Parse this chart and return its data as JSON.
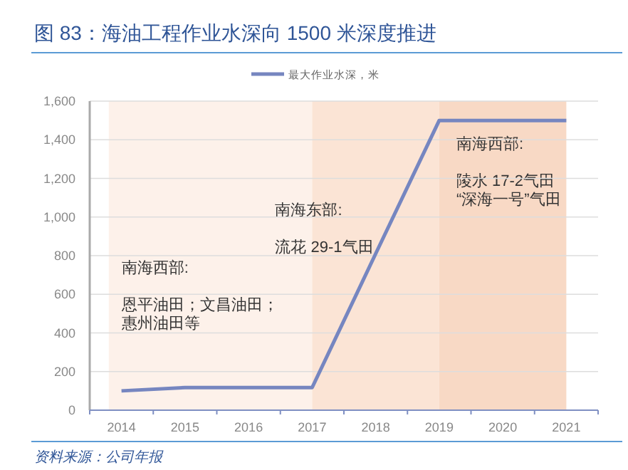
{
  "chart_data": {
    "type": "line",
    "title": "图 83：海油工程作业水深向 1500 米深度推进",
    "categories": [
      "2014",
      "2015",
      "2016",
      "2017",
      "2018",
      "2019",
      "2020",
      "2021"
    ],
    "series": [
      {
        "name": "最大作业水深，米",
        "color": "#7686c0",
        "values": [
          100,
          117,
          117,
          117,
          810,
          1500,
          1500,
          1500
        ]
      }
    ],
    "ylim": [
      0,
      1600
    ],
    "yticks": [
      {
        "value": 0,
        "label": "0"
      },
      {
        "value": 200,
        "label": "200"
      },
      {
        "value": 400,
        "label": "400"
      },
      {
        "value": 600,
        "label": "600"
      },
      {
        "value": 800,
        "label": "800"
      },
      {
        "value": 1000,
        "label": "1,000"
      },
      {
        "value": 1200,
        "label": "1,200"
      },
      {
        "value": 1400,
        "label": "1,400"
      },
      {
        "value": 1600,
        "label": "1,600"
      }
    ],
    "grid": "y",
    "legend": "top",
    "marker": "none",
    "line_style": "solid",
    "bands": [
      {
        "axis": "x",
        "from": "2014",
        "to": "2017",
        "color": "#fdf1ea",
        "label": "南海西部:\n\n恩平油田；文昌油田；惠州油田等"
      },
      {
        "axis": "x",
        "from": "2017",
        "to": "2019",
        "color": "#fbe4d5",
        "label": "南海东部:\n\n流花 29-1气田"
      },
      {
        "axis": "x",
        "from": "2019",
        "to": "2021",
        "color": "#f8d9c5",
        "label": "南海西部:\n\n陵水 17-2气田\n“深海一号”气田"
      }
    ],
    "annotations": [
      "资料来源：公司年报"
    ]
  }
}
